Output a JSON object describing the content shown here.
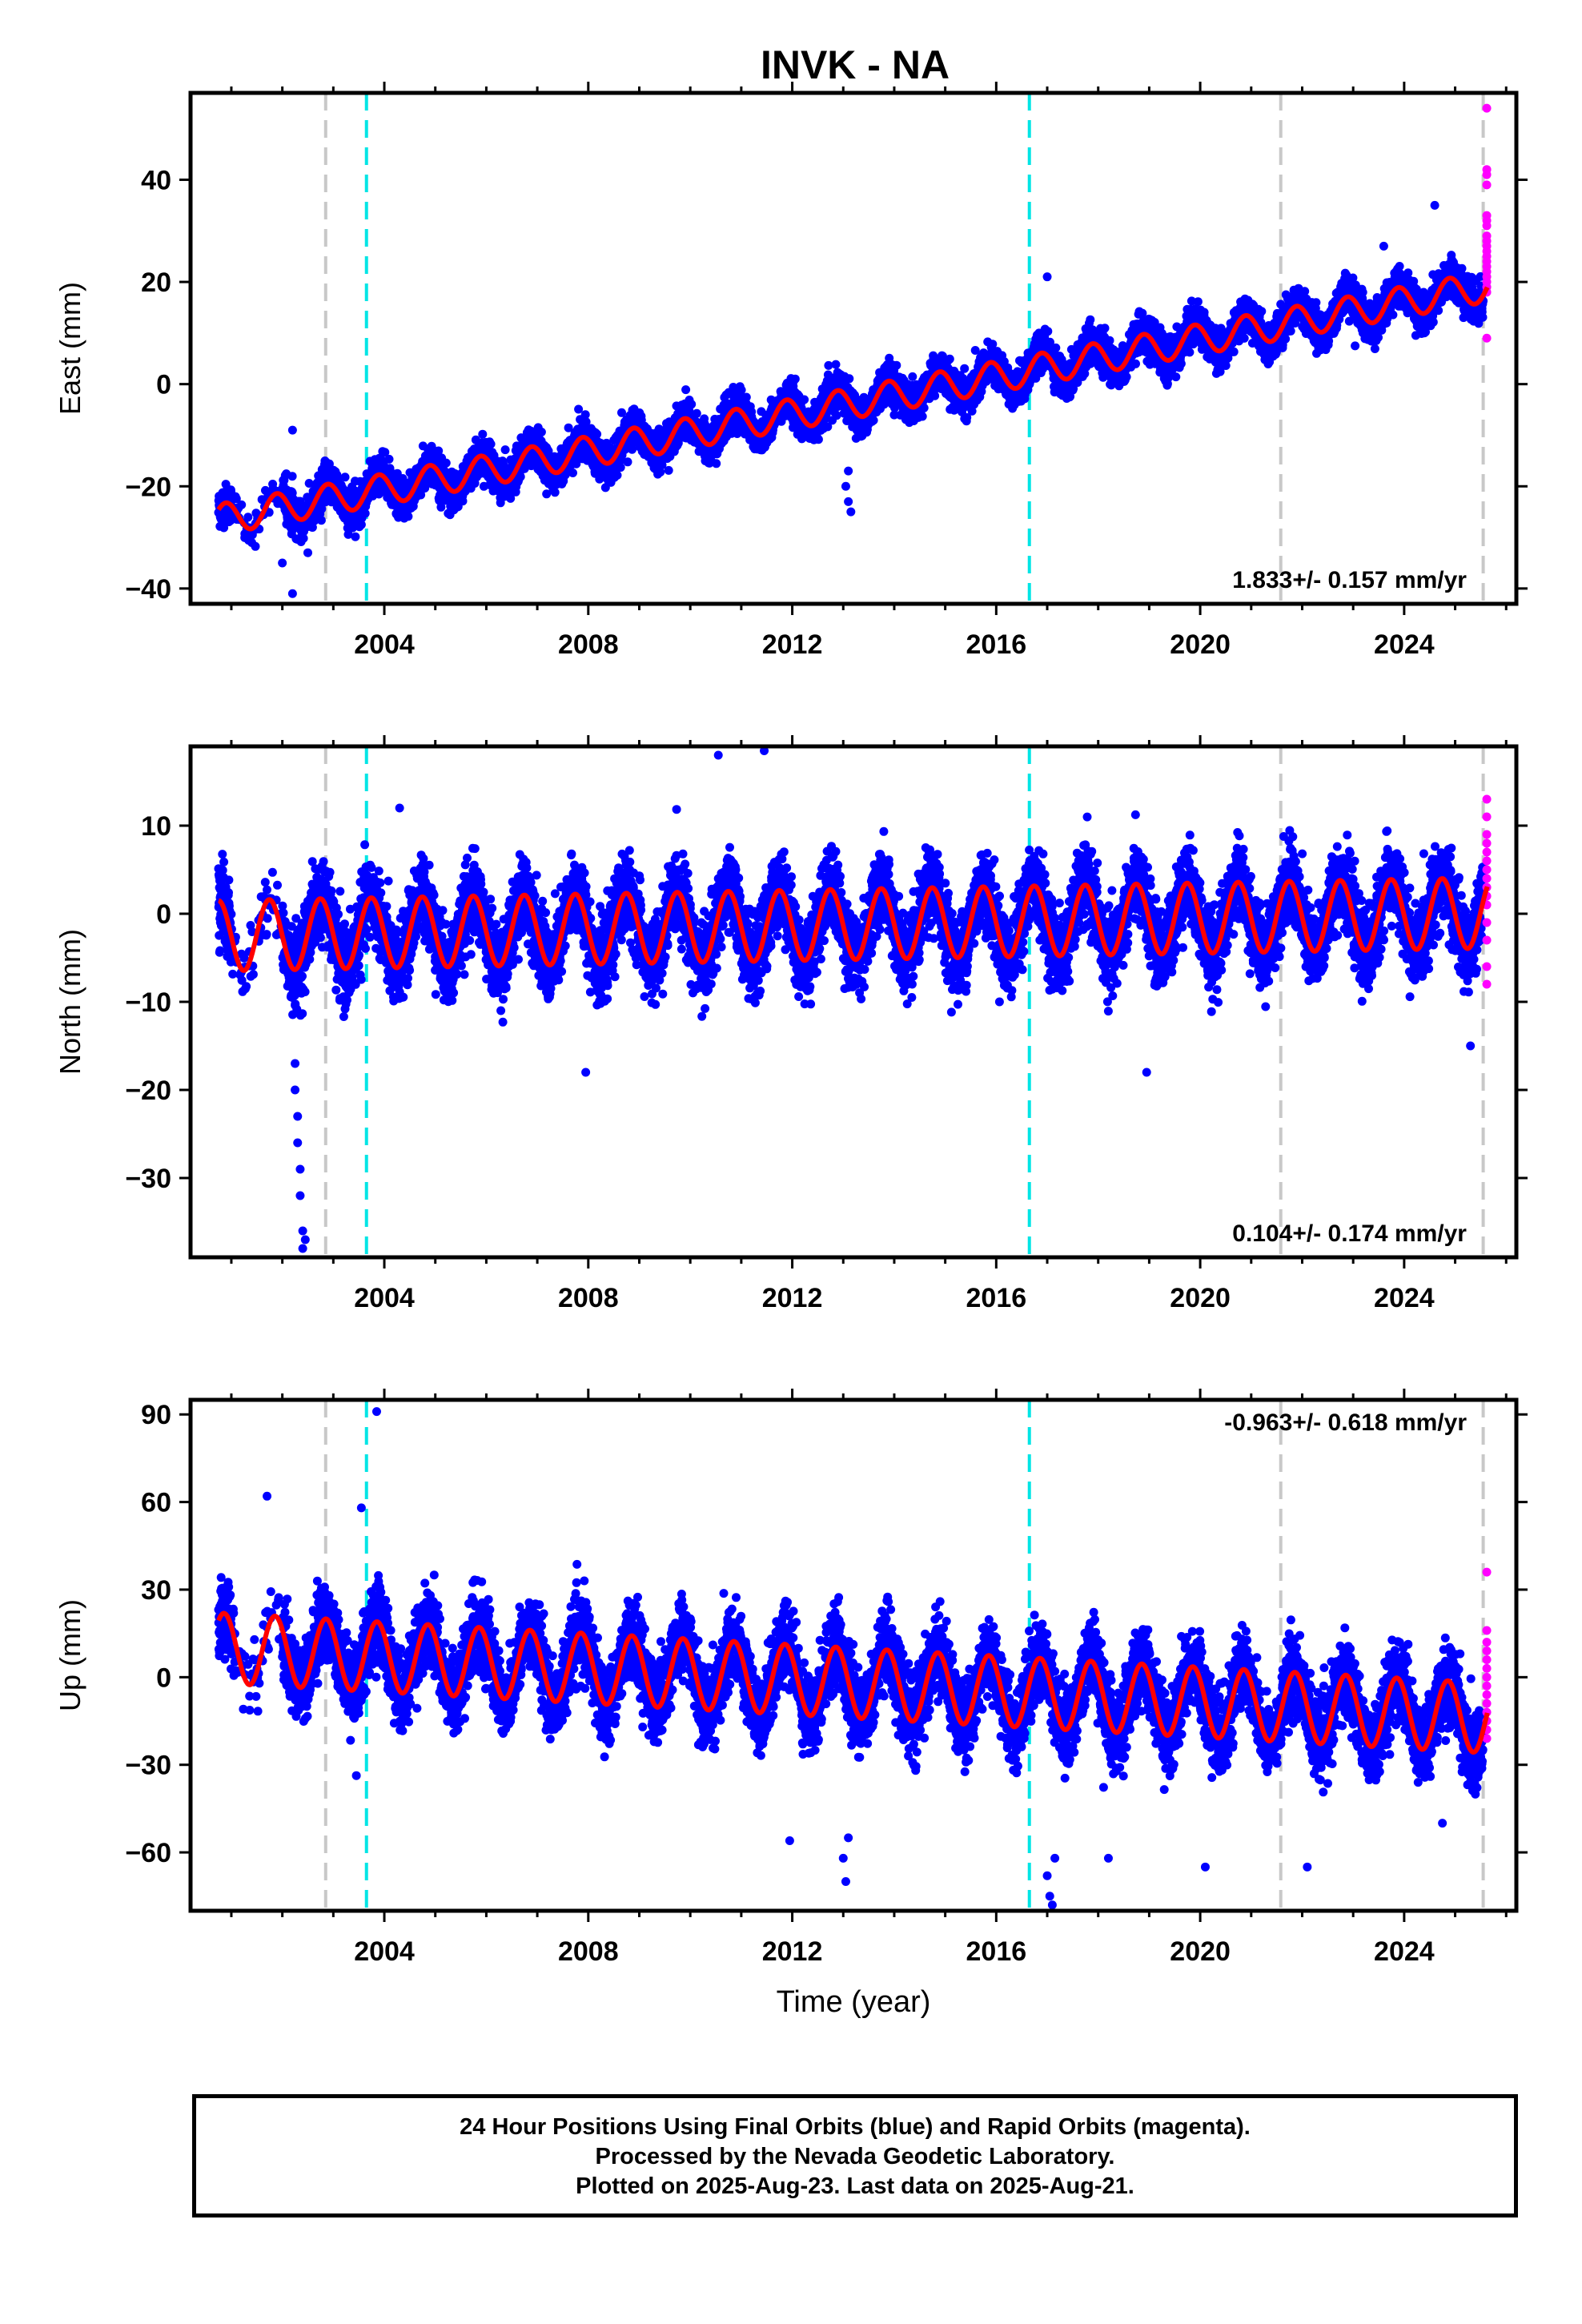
{
  "title": "INVK - NA",
  "footer": {
    "line1": "24 Hour Positions Using Final Orbits (blue) and Rapid Orbits (magenta).",
    "line2": "Processed by the Nevada Geodetic Laboratory.",
    "line3": "Plotted on 2025-Aug-23. Last data on 2025-Aug-21."
  },
  "colors": {
    "final_orbits": "#0000ff",
    "rapid_orbits": "#ff00ff",
    "model_fit": "#ff0000",
    "equipment_change": "#c8c8c8",
    "earthquake": "#00e5e5"
  },
  "chart_data": [
    {
      "type": "scatter",
      "component": "east",
      "ylabel": "East (mm)",
      "xlabel": "",
      "xlim": [
        2000.2,
        2026.2
      ],
      "ylim": [
        -43,
        57
      ],
      "yticks": [
        -40,
        -20,
        0,
        20,
        40
      ],
      "xticks": [
        2004,
        2008,
        2012,
        2016,
        2020,
        2024
      ],
      "xtick_labels": [
        "2004",
        "2008",
        "2012",
        "2016",
        "2020",
        "2024"
      ],
      "rate_annotation": "1.833+/- 0.157 mm/yr",
      "annotation_position": "bottom-right",
      "fit": {
        "start": 2000.75,
        "end": 2025.63,
        "intercept": -26.5,
        "rate": 1.833,
        "annual_amplitude": 3.0,
        "annual_phase": 0.7
      },
      "final_orbits_series": {
        "name": "Final Orbits",
        "start": 2000.75,
        "end": 2025.55,
        "scatter_sd": 1.8
      },
      "rapid_orbits_series": {
        "name": "Rapid Orbits",
        "x": 2025.62,
        "values": [
          54,
          42,
          41,
          39,
          33,
          32,
          31,
          29,
          28,
          27,
          26,
          25,
          24,
          23,
          22,
          21,
          20,
          19,
          18,
          9
        ]
      },
      "outliers": [
        {
          "x": 2001.4,
          "y": -31
        },
        {
          "x": 2002.0,
          "y": -35
        },
        {
          "x": 2002.2,
          "y": -41
        },
        {
          "x": 2002.2,
          "y": -9
        },
        {
          "x": 2002.5,
          "y": -33
        },
        {
          "x": 2013.05,
          "y": -20
        },
        {
          "x": 2013.1,
          "y": -23
        },
        {
          "x": 2013.15,
          "y": -25
        },
        {
          "x": 2013.1,
          "y": -17
        },
        {
          "x": 2017.0,
          "y": 21
        },
        {
          "x": 2023.6,
          "y": 27
        },
        {
          "x": 2024.6,
          "y": 35
        }
      ],
      "equipment_changes": [
        2002.85,
        2021.58,
        2025.55
      ],
      "earthquakes": [
        2003.65,
        2016.65
      ]
    },
    {
      "type": "scatter",
      "component": "north",
      "ylabel": "North (mm)",
      "xlabel": "",
      "xlim": [
        2000.2,
        2026.2
      ],
      "ylim": [
        -39,
        19
      ],
      "yticks": [
        -30,
        -20,
        -10,
        0,
        10
      ],
      "xticks": [
        2004,
        2008,
        2012,
        2016,
        2020,
        2024
      ],
      "xtick_labels": [
        "2004",
        "2008",
        "2012",
        "2016",
        "2020",
        "2024"
      ],
      "rate_annotation": "0.104+/- 0.174 mm/yr",
      "annotation_position": "bottom-right",
      "fit": {
        "start": 2000.75,
        "end": 2025.63,
        "intercept": -2.5,
        "rate": 0.104,
        "annual_amplitude": 4.0,
        "annual_phase": 1.6
      },
      "final_orbits_series": {
        "name": "Final Orbits",
        "start": 2000.75,
        "end": 2025.55,
        "scatter_sd": 2.2
      },
      "rapid_orbits_series": {
        "name": "Rapid Orbits",
        "x": 2025.62,
        "values": [
          13,
          11,
          9,
          8,
          7,
          6,
          5,
          4,
          3,
          2,
          1,
          -1,
          -3,
          -6,
          -8
        ]
      },
      "outliers": [
        {
          "x": 2002.25,
          "y": -17
        },
        {
          "x": 2002.25,
          "y": -20
        },
        {
          "x": 2002.3,
          "y": -23
        },
        {
          "x": 2002.3,
          "y": -26
        },
        {
          "x": 2002.35,
          "y": -29
        },
        {
          "x": 2002.35,
          "y": -32
        },
        {
          "x": 2002.4,
          "y": -36
        },
        {
          "x": 2002.4,
          "y": -38
        },
        {
          "x": 2002.45,
          "y": -37
        },
        {
          "x": 2004.3,
          "y": 12
        },
        {
          "x": 2007.95,
          "y": -18
        },
        {
          "x": 2010.55,
          "y": 18
        },
        {
          "x": 2011.45,
          "y": 18.5
        },
        {
          "x": 2018.95,
          "y": -18
        },
        {
          "x": 2025.3,
          "y": -15
        }
      ],
      "equipment_changes": [
        2002.85,
        2021.58,
        2025.55
      ],
      "earthquakes": [
        2003.65,
        2016.65
      ]
    },
    {
      "type": "scatter",
      "component": "up",
      "ylabel": "Up (mm)",
      "xlabel": "Time (year)",
      "xlim": [
        2000.2,
        2026.2
      ],
      "ylim": [
        -80,
        95
      ],
      "yticks": [
        -60,
        -30,
        0,
        30,
        60,
        90
      ],
      "xticks": [
        2004,
        2008,
        2012,
        2016,
        2020,
        2024
      ],
      "xtick_labels": [
        "2004",
        "2008",
        "2012",
        "2016",
        "2020",
        "2024"
      ],
      "rate_annotation": "-0.963+/- 0.618 mm/yr",
      "annotation_position": "top-right",
      "fit": {
        "start": 2000.75,
        "end": 2025.63,
        "intercept": 10,
        "rate": -0.963,
        "annual_amplitude": 12,
        "annual_phase": 0.9
      },
      "final_orbits_series": {
        "name": "Final Orbits",
        "start": 2000.75,
        "end": 2025.55,
        "scatter_sd": 6.5
      },
      "rapid_orbits_series": {
        "name": "Rapid Orbits",
        "x": 2025.62,
        "values": [
          36,
          16,
          12,
          9,
          6,
          3,
          0,
          -3,
          -6,
          -9,
          -12,
          -15,
          -18,
          -21
        ]
      },
      "outliers": [
        {
          "x": 2003.85,
          "y": 91
        },
        {
          "x": 2001.7,
          "y": 62
        },
        {
          "x": 2003.55,
          "y": 58
        },
        {
          "x": 2013.0,
          "y": -62
        },
        {
          "x": 2013.05,
          "y": -70
        },
        {
          "x": 2013.1,
          "y": -55
        },
        {
          "x": 2017.0,
          "y": -68
        },
        {
          "x": 2017.05,
          "y": -75
        },
        {
          "x": 2017.1,
          "y": -78
        },
        {
          "x": 2017.15,
          "y": -62
        },
        {
          "x": 2018.2,
          "y": -62
        },
        {
          "x": 2020.1,
          "y": -65
        },
        {
          "x": 2022.1,
          "y": -65
        },
        {
          "x": 2011.95,
          "y": -56
        },
        {
          "x": 2024.75,
          "y": -50
        }
      ],
      "equipment_changes": [
        2002.85,
        2021.58,
        2025.55
      ],
      "earthquakes": [
        2003.65,
        2016.65
      ]
    }
  ]
}
